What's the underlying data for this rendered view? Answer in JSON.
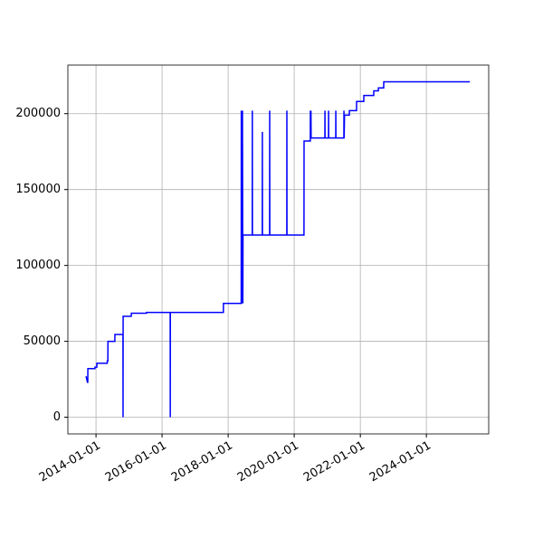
{
  "chart_data": {
    "type": "line",
    "x": [
      "2013-09-13",
      "2013-09-28",
      "2013-10-02",
      "2013-10-03",
      "2013-12-20",
      "2013-12-21",
      "2014-01-10",
      "2014-01-11",
      "2014-05-05",
      "2014-05-06",
      "2014-05-12",
      "2014-05-13",
      "2014-07-28",
      "2014-07-29",
      "2014-10-26",
      "2014-10-27",
      "2014-10-28",
      "2015-01-26",
      "2015-01-27",
      "2015-07-12",
      "2015-07-13",
      "2016-03-31",
      "2016-04-01",
      "2016-04-02",
      "2017-11-09",
      "2017-11-10",
      "2018-05-25",
      "2018-05-26",
      "2018-05-28",
      "2018-06-01",
      "2018-06-04",
      "2018-06-08",
      "2018-06-12",
      "2018-06-14",
      "2018-09-24",
      "2018-09-25",
      "2018-09-26",
      "2019-01-13",
      "2019-01-14",
      "2019-01-15",
      "2019-04-04",
      "2019-04-05",
      "2019-04-06",
      "2019-10-11",
      "2019-10-12",
      "2019-10-13",
      "2020-04-18",
      "2020-04-19",
      "2020-06-27",
      "2020-06-28",
      "2020-07-01",
      "2020-07-04",
      "2020-07-06",
      "2020-12-05",
      "2020-12-06",
      "2020-12-07",
      "2021-01-14",
      "2021-01-15",
      "2021-01-16",
      "2021-04-04",
      "2021-04-05",
      "2021-04-06",
      "2021-07-03",
      "2021-07-04",
      "2021-07-06",
      "2021-07-10",
      "2021-09-01",
      "2021-09-02",
      "2021-11-20",
      "2021-11-21",
      "2022-02-08",
      "2022-02-09",
      "2022-05-29",
      "2022-05-30",
      "2022-07-19",
      "2022-07-20",
      "2022-09-16",
      "2022-09-17",
      "2025-04-26"
    ],
    "series": [
      {
        "color": "#0000ff",
        "values": [
          27000,
          23000,
          23000,
          32000,
          32000,
          33000,
          33000,
          35500,
          35500,
          37000,
          37000,
          50000,
          50000,
          54500,
          54500,
          0,
          66500,
          66500,
          68500,
          68500,
          69000,
          69000,
          0,
          69000,
          69000,
          75000,
          75000,
          202000,
          75000,
          202000,
          75000,
          202000,
          75000,
          120000,
          120000,
          202000,
          120000,
          120000,
          188000,
          120000,
          120000,
          202000,
          120000,
          120000,
          202000,
          120000,
          120000,
          182000,
          182000,
          202000,
          184000,
          202000,
          184000,
          184000,
          202000,
          184000,
          184000,
          202000,
          184000,
          184000,
          202000,
          184000,
          184000,
          202000,
          184000,
          199000,
          199000,
          202000,
          202000,
          208000,
          208000,
          212000,
          212000,
          215000,
          215000,
          217000,
          217000,
          221000,
          221000
        ]
      }
    ],
    "xlim": [
      "2013-02-24",
      "2025-11-20"
    ],
    "xticks": [
      "2014-01-01",
      "2016-01-01",
      "2018-01-01",
      "2020-01-01",
      "2022-01-01",
      "2024-01-01"
    ],
    "ylim": [
      -11000,
      232000
    ],
    "yticks": [
      0,
      50000,
      100000,
      150000,
      200000
    ],
    "grid": true
  }
}
